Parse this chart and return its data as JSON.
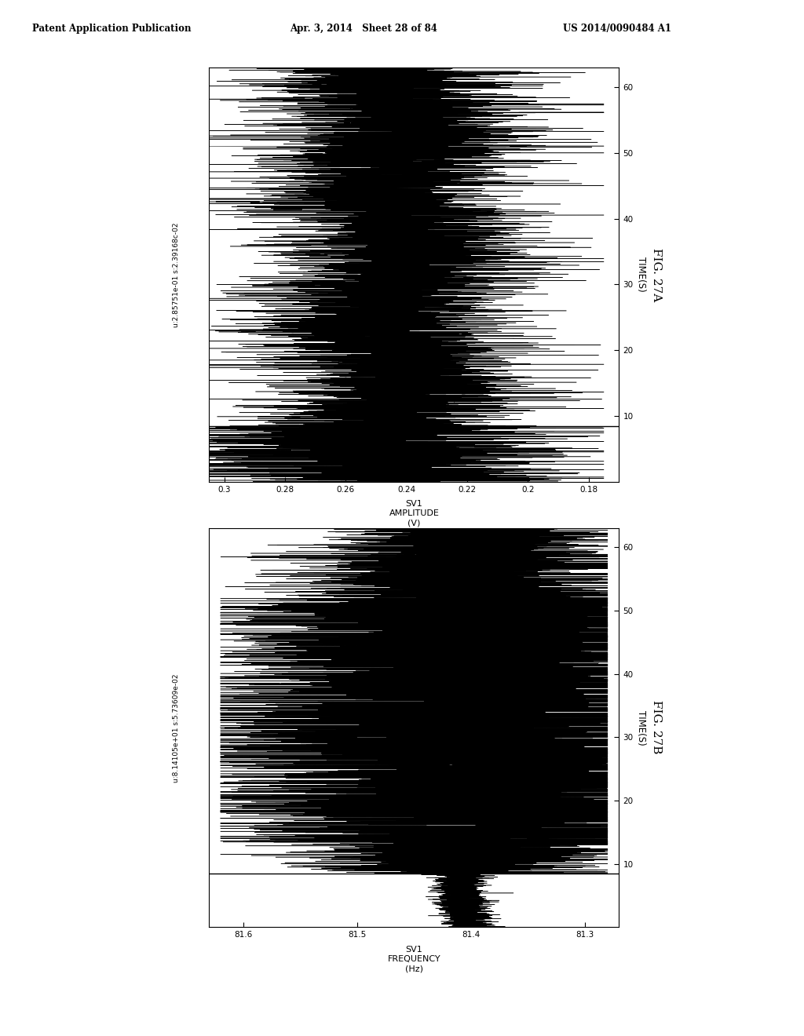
{
  "header_left": "Patent Application Publication",
  "header_mid": "Apr. 3, 2014   Sheet 28 of 84",
  "header_right": "US 2014/0090484 A1",
  "fig_a_label": "FIG. 27A",
  "fig_b_label": "FIG. 27B",
  "plot_a": {
    "ylabel_line1": "SV1",
    "ylabel_line2": "AMPLITUDE",
    "ylabel_line3": "(V)",
    "xlabel": "TIME(S)",
    "stats_text": "u:2.85751e-01 s:2.39168c-02",
    "yticks": [
      0.3,
      0.28,
      0.26,
      0.24,
      0.22,
      0.2,
      0.18
    ],
    "ytick_labels": [
      "0.3",
      "0.28",
      "0.26",
      "0.24",
      "0.22",
      "0.2",
      "0.18"
    ],
    "xticks": [
      10,
      20,
      30,
      40,
      50,
      60
    ],
    "xtick_labels": [
      "10",
      "20",
      "30",
      "40",
      "50",
      "60"
    ],
    "signal_ylim": [
      0.17,
      0.305
    ],
    "time_xlim": [
      0,
      63
    ],
    "hline_t": 8.5
  },
  "plot_b": {
    "ylabel_line1": "SV1",
    "ylabel_line2": "FREQUENCY",
    "ylabel_line3": "(Hz)",
    "xlabel": "TIME(S)",
    "stats_text": "u:8.14105e+01 s:5.73609e-02",
    "yticks": [
      81.6,
      81.5,
      81.4,
      81.3
    ],
    "ytick_labels": [
      "81.6",
      "81.5",
      "81.4",
      "81.3"
    ],
    "xticks": [
      10,
      20,
      30,
      40,
      50,
      60
    ],
    "xtick_labels": [
      "10",
      "20",
      "30",
      "40",
      "50",
      "60"
    ],
    "signal_ylim": [
      81.27,
      81.63
    ],
    "time_xlim": [
      0,
      63
    ],
    "hline_t": 8.5
  },
  "background_color": "#ffffff",
  "line_color": "#000000"
}
